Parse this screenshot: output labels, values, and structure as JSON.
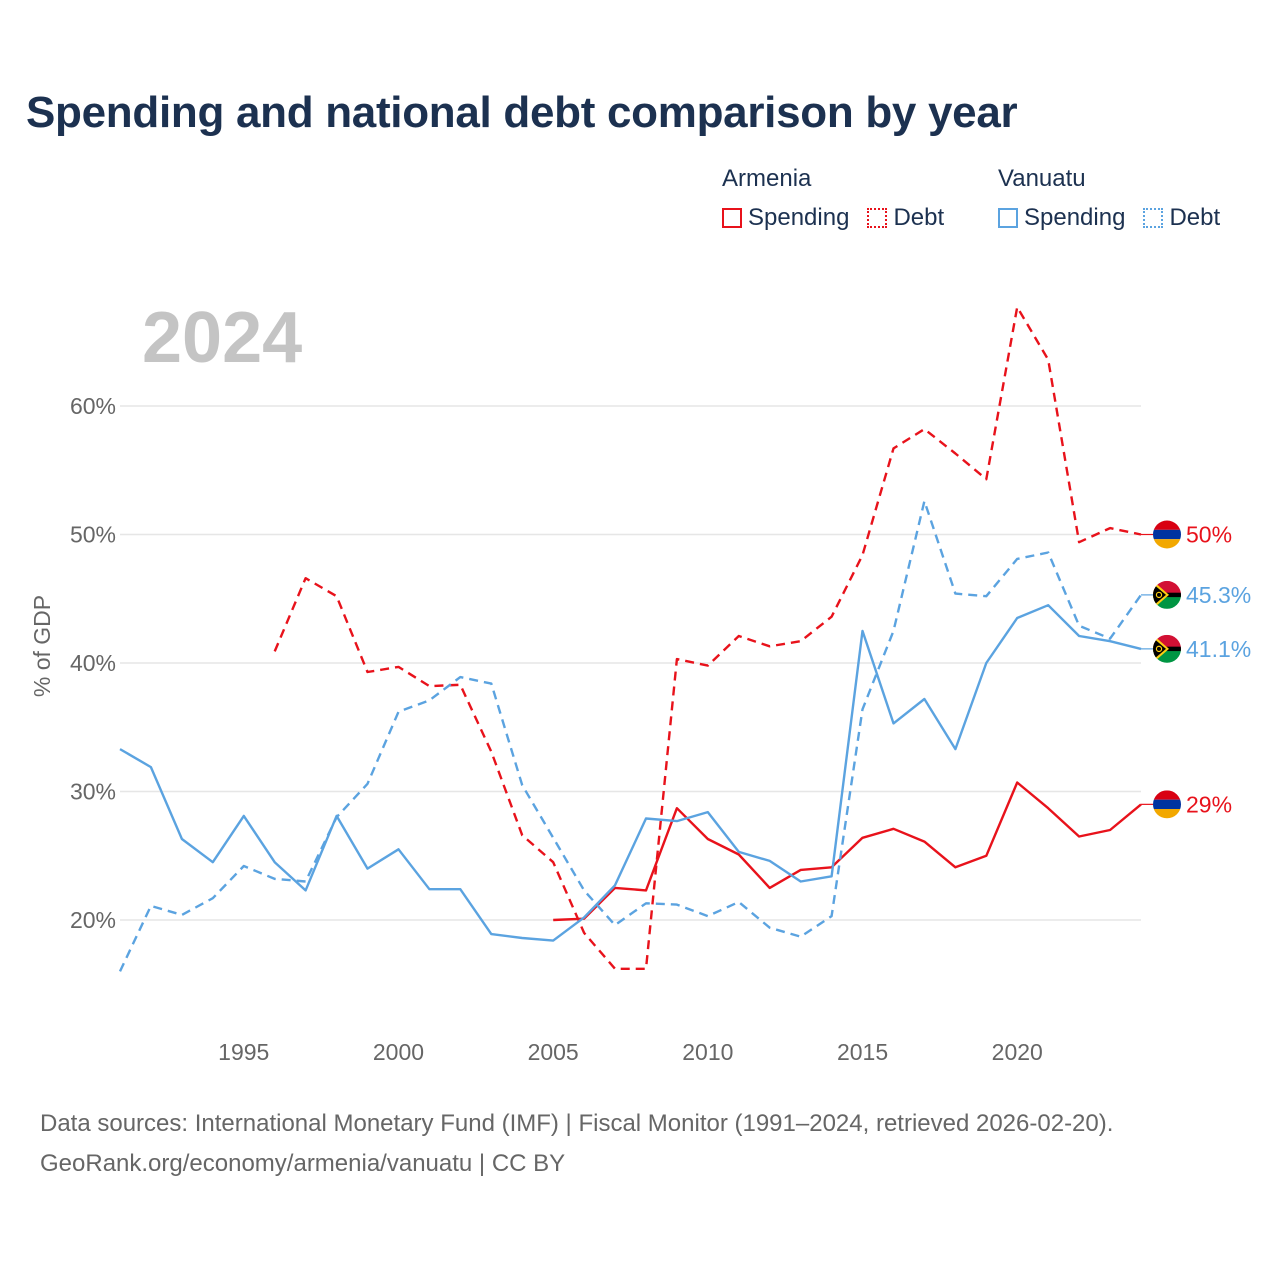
{
  "title": "Spending and national debt comparison by year",
  "legend": {
    "groups": [
      {
        "country": "Armenia",
        "color": "#e8121b",
        "items": [
          "Spending",
          "Debt"
        ]
      },
      {
        "country": "Vanuatu",
        "color": "#5ba3e0",
        "items": [
          "Spending",
          "Debt"
        ]
      }
    ]
  },
  "year_label": "2024",
  "footer": {
    "line1": "Data sources: International Monetary Fund (IMF) | Fiscal Monitor (1991–2024, retrieved 2026-02-20).",
    "line2": "GeoRank.org/economy/armenia/vanuatu | CC BY"
  },
  "chart_data": {
    "type": "line",
    "ylabel": "% of GDP",
    "xlabel": "",
    "xlim": [
      1991,
      2024
    ],
    "ylim": [
      13,
      70
    ],
    "yticks": [
      20,
      30,
      40,
      50,
      60
    ],
    "ytick_labels": [
      "20%",
      "30%",
      "40%",
      "50%",
      "60%"
    ],
    "xticks": [
      1995,
      2000,
      2005,
      2010,
      2015,
      2020
    ],
    "xtick_labels": [
      "1995",
      "2000",
      "2005",
      "2010",
      "2015",
      "2020"
    ],
    "series": [
      {
        "name": "Armenia Debt",
        "country": "Armenia",
        "metric": "Debt",
        "color": "#e8121b",
        "dashed": true,
        "end_label": "50%",
        "flag": "armenia",
        "x": [
          1996,
          1997,
          1998,
          1999,
          2000,
          2001,
          2002,
          2003,
          2004,
          2005,
          2006,
          2007,
          2008,
          2009,
          2010,
          2011,
          2012,
          2013,
          2014,
          2015,
          2016,
          2017,
          2018,
          2019,
          2020,
          2021,
          2022,
          2023,
          2024
        ],
        "values": [
          40.9,
          46.6,
          45.2,
          39.3,
          39.7,
          38.2,
          38.3,
          33.1,
          26.6,
          24.5,
          19.0,
          16.2,
          16.2,
          40.3,
          39.8,
          42.1,
          41.3,
          41.7,
          43.6,
          48.4,
          56.7,
          58.2,
          56.3,
          54.3,
          67.7,
          63.6,
          49.4,
          50.5,
          50.0
        ]
      },
      {
        "name": "Armenia Spending",
        "country": "Armenia",
        "metric": "Spending",
        "color": "#e8121b",
        "dashed": false,
        "end_label": "29%",
        "flag": "armenia",
        "x": [
          2005,
          2006,
          2007,
          2008,
          2009,
          2010,
          2011,
          2012,
          2013,
          2014,
          2015,
          2016,
          2017,
          2018,
          2019,
          2020,
          2021,
          2022,
          2023,
          2024
        ],
        "values": [
          20.0,
          20.1,
          22.5,
          22.3,
          28.7,
          26.3,
          25.1,
          22.5,
          23.9,
          24.1,
          26.4,
          27.1,
          26.1,
          24.1,
          25.0,
          30.7,
          28.7,
          26.5,
          27.0,
          29.0
        ]
      },
      {
        "name": "Vanuatu Debt",
        "country": "Vanuatu",
        "metric": "Debt",
        "color": "#5ba3e0",
        "dashed": true,
        "end_label": "45.3%",
        "flag": "vanuatu",
        "x": [
          1991,
          1992,
          1993,
          1994,
          1995,
          1996,
          1997,
          1998,
          1999,
          2000,
          2001,
          2002,
          2003,
          2004,
          2005,
          2006,
          2007,
          2008,
          2009,
          2010,
          2011,
          2012,
          2013,
          2014,
          2015,
          2016,
          2017,
          2018,
          2019,
          2020,
          2021,
          2022,
          2023,
          2024
        ],
        "values": [
          16.0,
          21.1,
          20.4,
          21.7,
          24.2,
          23.2,
          23.0,
          28.0,
          30.6,
          36.2,
          37.1,
          38.9,
          38.4,
          30.5,
          26.4,
          22.3,
          19.6,
          21.3,
          21.2,
          20.3,
          21.4,
          19.4,
          18.7,
          20.3,
          36.4,
          42.5,
          52.6,
          45.4,
          45.2,
          48.1,
          48.6,
          42.9,
          41.9,
          45.3
        ]
      },
      {
        "name": "Vanuatu Spending",
        "country": "Vanuatu",
        "metric": "Spending",
        "color": "#5ba3e0",
        "dashed": false,
        "end_label": "41.1%",
        "flag": "vanuatu",
        "x": [
          1991,
          1992,
          1993,
          1994,
          1995,
          1996,
          1997,
          1998,
          1999,
          2000,
          2001,
          2002,
          2003,
          2004,
          2005,
          2006,
          2007,
          2008,
          2009,
          2010,
          2011,
          2012,
          2013,
          2014,
          2015,
          2016,
          2017,
          2018,
          2019,
          2020,
          2021,
          2022,
          2023,
          2024
        ],
        "values": [
          33.3,
          31.9,
          26.3,
          24.5,
          28.1,
          24.5,
          22.3,
          28.1,
          24.0,
          25.5,
          22.4,
          22.4,
          18.9,
          18.6,
          18.4,
          20.2,
          22.7,
          27.9,
          27.7,
          28.4,
          25.3,
          24.6,
          23.0,
          23.4,
          42.5,
          35.3,
          37.2,
          33.3,
          40.0,
          43.5,
          44.5,
          42.1,
          41.7,
          41.1
        ]
      }
    ]
  }
}
